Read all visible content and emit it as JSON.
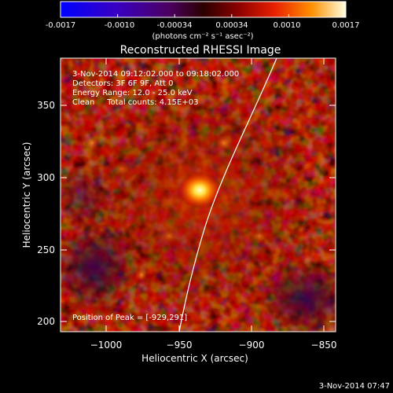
{
  "colorbar": {
    "tick_labels": [
      "-0.0017",
      "-0.0010",
      "-0.00034",
      "0.00034",
      "0.0010",
      "0.0017"
    ],
    "units": "(photons cm⁻² s⁻¹ asec⁻²)"
  },
  "plot": {
    "title": "Reconstructed RHESSI Image",
    "xlabel": "Heliocentric X (arcsec)",
    "ylabel": "Heliocentric Y (arcsec)",
    "x_ticks": [
      "−1000",
      "−950",
      "−900",
      "−850"
    ],
    "y_ticks": [
      "350",
      "300",
      "250",
      "200"
    ],
    "info_lines": [
      "3-Nov-2014 09:12:02.000 to 09:18:02.000",
      "Detectors: 3F 6F 9F, Att 0",
      "Energy Range: 12.0 - 25.0 keV",
      "Clean     Total counts: 4.15E+03"
    ],
    "peak_label": "Position of Peak = [-929,291]"
  },
  "footer": {
    "timestamp": "3-Nov-2014 07:47"
  },
  "colors": {
    "background": "#000000",
    "text": "#ffffff",
    "limb": "#ffffff"
  }
}
